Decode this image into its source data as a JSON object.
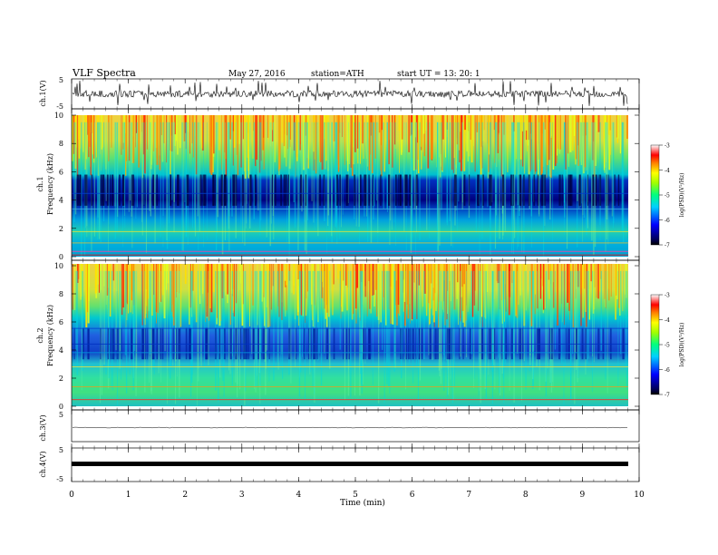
{
  "header": {
    "title": "VLF  Spectra",
    "date": "May 27, 2016",
    "station": "station=ATH",
    "start": "start  UT  =    13: 20: 1"
  },
  "colors": {
    "frame": "#000000",
    "spec_low": "#000070",
    "spec_mid": "#00e0c0",
    "spec_high": "#ff1000"
  },
  "chart_data": [
    {
      "type": "line",
      "ylabel": "ch.1(V)",
      "ylim": [
        -5,
        5
      ],
      "ytick_labels": [
        "5",
        "-5"
      ],
      "note": "noisy waveform hovering near 0 V with spikes"
    },
    {
      "type": "heatmap",
      "ylabel_channel": "ch.1",
      "ylabel": "Frequency  (kHz)",
      "ylim": [
        0,
        10
      ],
      "ytick_labels": [
        "0",
        "2",
        "4",
        "6",
        "8",
        "10"
      ],
      "colorbar": {
        "label": "log(PSD)(V²/Hz)",
        "range": [
          -7,
          -3
        ],
        "tick_labels": [
          "-3",
          "-4",
          "-5",
          "-6",
          "-7"
        ]
      }
    },
    {
      "type": "heatmap",
      "ylabel_channel": "ch.2",
      "ylabel": "Frequency  (kHz)",
      "ylim": [
        0,
        10
      ],
      "ytick_labels": [
        "0",
        "2",
        "4",
        "6",
        "8",
        "10"
      ],
      "colorbar": {
        "label": "log(PSD)(V²/Hz)",
        "range": [
          -7,
          -3
        ],
        "tick_labels": [
          "-3",
          "-4",
          "-5",
          "-6",
          "-7"
        ]
      }
    },
    {
      "type": "line",
      "ylabel": "ch.3(V)",
      "ylim": [
        -5,
        5
      ],
      "ytick_labels": [
        "5"
      ],
      "note": "flat trace near 0 V"
    },
    {
      "type": "line",
      "ylabel": "ch.4(V)",
      "ylim": [
        -5,
        5
      ],
      "ytick_labels": [
        "5",
        "-5"
      ],
      "note": "thick flat trace near 0 V"
    }
  ],
  "xaxis": {
    "label": "Time  (min)",
    "xlim": [
      0,
      10
    ],
    "tick_labels": [
      "0",
      "1",
      "2",
      "3",
      "4",
      "5",
      "6",
      "7",
      "8",
      "9",
      "10"
    ]
  }
}
